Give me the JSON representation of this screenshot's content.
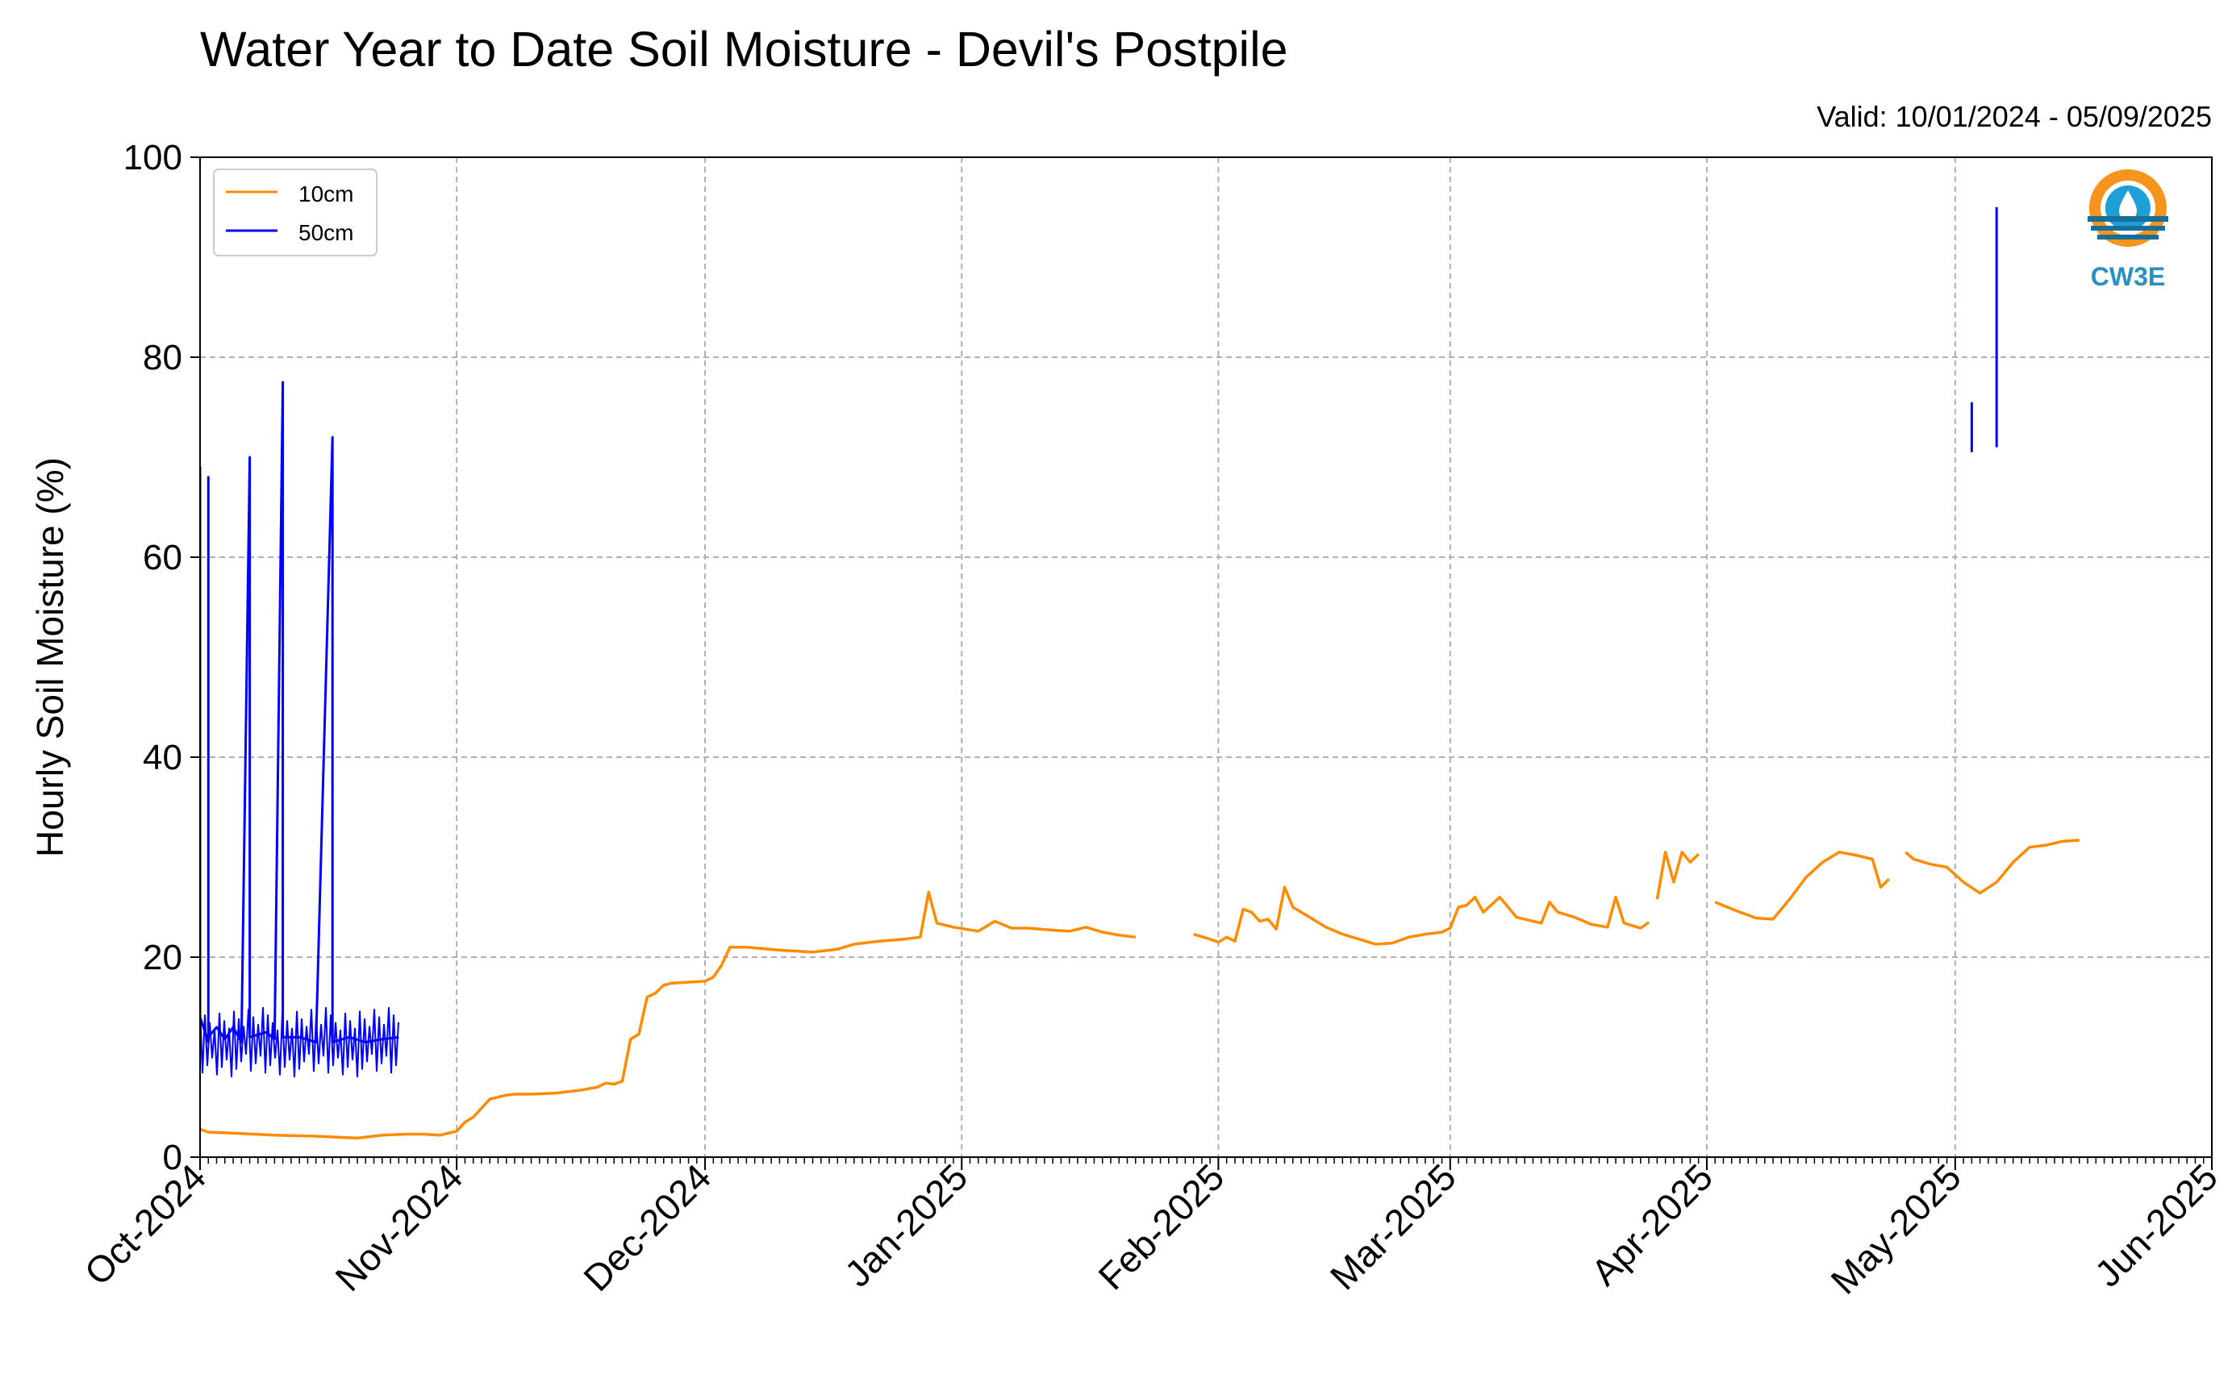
{
  "chart_data": {
    "type": "line",
    "title": "Water Year to Date Soil Moisture - Devil's Postpile",
    "subtitle": "Valid: 10/01/2024 - 05/09/2025",
    "xlabel": "",
    "ylabel": "Hourly Soil Moisture (%)",
    "xlim": [
      "2024-10-01",
      "2025-06-01"
    ],
    "ylim": [
      0,
      100
    ],
    "x_ticks": [
      "Oct-2024",
      "Nov-2024",
      "Dec-2024",
      "Jan-2025",
      "Feb-2025",
      "Mar-2025",
      "Apr-2025",
      "May-2025",
      "Jun-2025"
    ],
    "x_tick_dates": [
      "2024-10-01",
      "2024-11-01",
      "2024-12-01",
      "2025-01-01",
      "2025-02-01",
      "2025-03-01",
      "2025-04-01",
      "2025-05-01",
      "2025-06-01"
    ],
    "y_ticks": [
      0,
      20,
      40,
      60,
      80,
      100
    ],
    "grid": true,
    "legend_position": "top-left",
    "series": [
      {
        "name": "10cm",
        "color": "#ff8c00",
        "segments": [
          [
            [
              "2024-10-01",
              2.8
            ],
            [
              "2024-10-02",
              2.5
            ],
            [
              "2024-10-05",
              2.4
            ],
            [
              "2024-10-10",
              2.2
            ],
            [
              "2024-10-15",
              2.1
            ],
            [
              "2024-10-20",
              1.9
            ],
            [
              "2024-10-23",
              2.2
            ],
            [
              "2024-10-26",
              2.3
            ],
            [
              "2024-10-28",
              2.3
            ],
            [
              "2024-10-30",
              2.2
            ],
            [
              "2024-11-01",
              2.6
            ],
            [
              "2024-11-02",
              3.5
            ],
            [
              "2024-11-03",
              4.0
            ],
            [
              "2024-11-05",
              5.8
            ],
            [
              "2024-11-07",
              6.2
            ],
            [
              "2024-11-08",
              6.3
            ],
            [
              "2024-11-10",
              6.3
            ],
            [
              "2024-11-13",
              6.4
            ],
            [
              "2024-11-16",
              6.7
            ],
            [
              "2024-11-18",
              7.0
            ],
            [
              "2024-11-19",
              7.4
            ],
            [
              "2024-11-20",
              7.3
            ],
            [
              "2024-11-21",
              7.6
            ],
            [
              "2024-11-22",
              11.8
            ],
            [
              "2024-11-23",
              12.3
            ],
            [
              "2024-11-24",
              16.0
            ],
            [
              "2024-11-25",
              16.4
            ],
            [
              "2024-11-26",
              17.2
            ],
            [
              "2024-11-27",
              17.4
            ],
            [
              "2024-11-29",
              17.5
            ],
            [
              "2024-12-01",
              17.6
            ],
            [
              "2024-12-02",
              18.0
            ],
            [
              "2024-12-03",
              19.2
            ],
            [
              "2024-12-04",
              21.0
            ],
            [
              "2024-12-06",
              21.0
            ],
            [
              "2024-12-10",
              20.7
            ],
            [
              "2024-12-14",
              20.5
            ],
            [
              "2024-12-17",
              20.8
            ],
            [
              "2024-12-19",
              21.3
            ],
            [
              "2024-12-22",
              21.6
            ],
            [
              "2024-12-25",
              21.8
            ],
            [
              "2024-12-27",
              22.0
            ],
            [
              "2024-12-28",
              26.5
            ],
            [
              "2024-12-29",
              23.4
            ],
            [
              "2024-12-31",
              23.0
            ],
            [
              "2025-01-03",
              22.6
            ],
            [
              "2025-01-05",
              23.6
            ],
            [
              "2025-01-07",
              22.9
            ],
            [
              "2025-01-09",
              22.9
            ],
            [
              "2025-01-12",
              22.7
            ],
            [
              "2025-01-14",
              22.6
            ],
            [
              "2025-01-16",
              23.0
            ],
            [
              "2025-01-18",
              22.5
            ],
            [
              "2025-01-20",
              22.2
            ],
            [
              "2025-01-22",
              22.0
            ]
          ],
          [
            [
              "2025-01-29",
              22.3
            ],
            [
              "2025-01-31",
              21.8
            ],
            [
              "2025-02-01",
              21.5
            ],
            [
              "2025-02-02",
              22.0
            ],
            [
              "2025-02-03",
              21.6
            ],
            [
              "2025-02-04",
              24.8
            ],
            [
              "2025-02-05",
              24.5
            ],
            [
              "2025-02-06",
              23.6
            ],
            [
              "2025-02-07",
              23.8
            ],
            [
              "2025-02-08",
              22.8
            ],
            [
              "2025-02-09",
              27.0
            ],
            [
              "2025-02-10",
              25.0
            ],
            [
              "2025-02-12",
              24.0
            ],
            [
              "2025-02-14",
              23.0
            ],
            [
              "2025-02-16",
              22.3
            ],
            [
              "2025-02-18",
              21.8
            ],
            [
              "2025-02-20",
              21.3
            ],
            [
              "2025-02-22",
              21.4
            ],
            [
              "2025-02-24",
              22.0
            ],
            [
              "2025-02-26",
              22.3
            ],
            [
              "2025-02-28",
              22.5
            ],
            [
              "2025-03-01",
              22.9
            ],
            [
              "2025-03-02",
              25.0
            ],
            [
              "2025-03-03",
              25.2
            ],
            [
              "2025-03-04",
              26.0
            ],
            [
              "2025-03-05",
              24.5
            ],
            [
              "2025-03-07",
              26.0
            ],
            [
              "2025-03-09",
              24.0
            ],
            [
              "2025-03-10",
              23.8
            ],
            [
              "2025-03-12",
              23.4
            ],
            [
              "2025-03-13",
              25.5
            ],
            [
              "2025-03-14",
              24.5
            ],
            [
              "2025-03-16",
              24.0
            ],
            [
              "2025-03-18",
              23.3
            ],
            [
              "2025-03-20",
              23.0
            ],
            [
              "2025-03-21",
              26.0
            ],
            [
              "2025-03-22",
              23.4
            ],
            [
              "2025-03-24",
              22.9
            ],
            [
              "2025-03-25",
              23.5
            ]
          ],
          [
            [
              "2025-03-26",
              25.8
            ],
            [
              "2025-03-27",
              30.5
            ],
            [
              "2025-03-28",
              27.5
            ],
            [
              "2025-03-29",
              30.5
            ],
            [
              "2025-03-30",
              29.5
            ],
            [
              "2025-03-31",
              30.3
            ]
          ],
          [
            [
              "2025-04-02",
              25.5
            ],
            [
              "2025-04-05",
              24.5
            ],
            [
              "2025-04-07",
              23.9
            ],
            [
              "2025-04-09",
              23.8
            ],
            [
              "2025-04-11",
              25.8
            ],
            [
              "2025-04-13",
              28.0
            ],
            [
              "2025-04-15",
              29.5
            ],
            [
              "2025-04-17",
              30.5
            ],
            [
              "2025-04-19",
              30.2
            ],
            [
              "2025-04-21",
              29.8
            ],
            [
              "2025-04-22",
              27.0
            ],
            [
              "2025-04-23",
              27.8
            ]
          ],
          [
            [
              "2025-04-25",
              30.5
            ],
            [
              "2025-04-26",
              29.8
            ],
            [
              "2025-04-28",
              29.3
            ],
            [
              "2025-04-30",
              29.0
            ],
            [
              "2025-05-02",
              27.5
            ],
            [
              "2025-05-04",
              26.4
            ],
            [
              "2025-05-06",
              27.5
            ],
            [
              "2025-05-08",
              29.5
            ],
            [
              "2025-05-10",
              31.0
            ],
            [
              "2025-05-12",
              31.2
            ],
            [
              "2025-05-14",
              31.6
            ],
            [
              "2025-05-16",
              31.7
            ]
          ]
        ]
      },
      {
        "name": "50cm",
        "color": "#0000ff",
        "segments": [
          [
            [
              "2024-10-01",
              14.0
            ],
            [
              "2024-10-01",
              69.0
            ],
            [
              "2024-10-01",
              14.0
            ],
            [
              "2024-10-02",
              11.5
            ],
            [
              "2024-10-02",
              68.0
            ],
            [
              "2024-10-02",
              12.0
            ],
            [
              "2024-10-03",
              13.0
            ],
            [
              "2024-10-04",
              11.8
            ],
            [
              "2024-10-05",
              13.0
            ],
            [
              "2024-10-06",
              11.5
            ],
            [
              "2024-10-07",
              70.0
            ],
            [
              "2024-10-07",
              12.0
            ],
            [
              "2024-10-09",
              12.5
            ],
            [
              "2024-10-10",
              11.8
            ],
            [
              "2024-10-11",
              77.5
            ],
            [
              "2024-10-11",
              12.0
            ],
            [
              "2024-10-13",
              12.0
            ],
            [
              "2024-10-15",
              11.5
            ],
            [
              "2024-10-17",
              72.0
            ],
            [
              "2024-10-17",
              11.5
            ],
            [
              "2024-10-19",
              12.0
            ],
            [
              "2024-10-21",
              11.5
            ],
            [
              "2024-10-23",
              11.8
            ],
            [
              "2024-10-25",
              12.0
            ]
          ],
          [
            [
              "2025-05-03",
              75.5
            ],
            [
              "2025-05-03",
              70.5
            ]
          ],
          [
            [
              "2025-05-06",
              71.0
            ],
            [
              "2025-05-06",
              75.0
            ],
            [
              "2025-05-06",
              95.0
            ]
          ]
        ],
        "band": {
          "x_range": [
            "2024-10-01",
            "2024-10-25"
          ],
          "y_range": [
            8,
            15
          ]
        }
      }
    ]
  },
  "logo": {
    "text": "CW3E"
  }
}
